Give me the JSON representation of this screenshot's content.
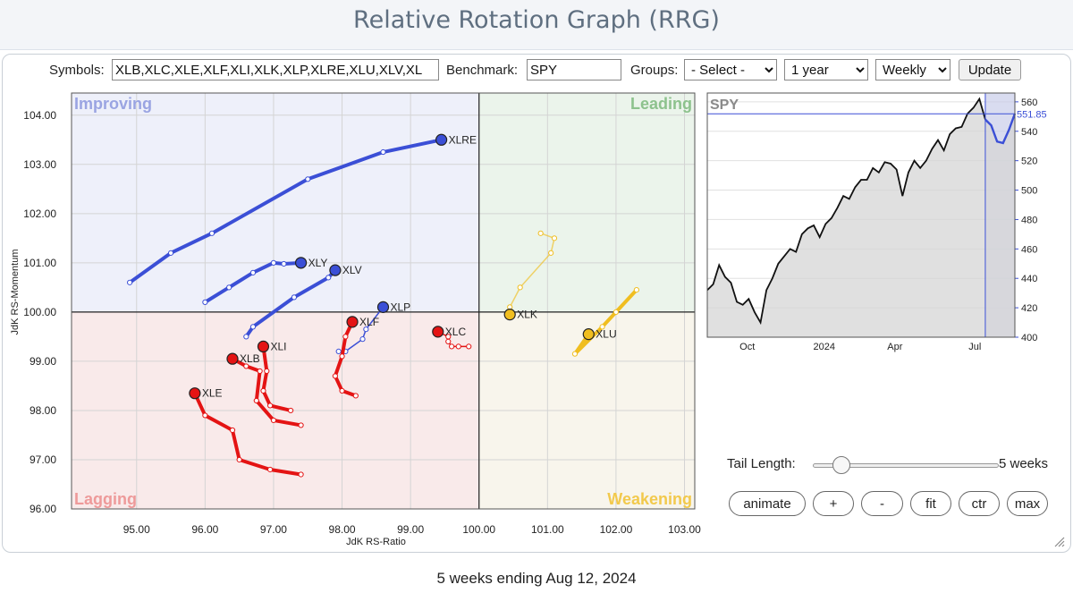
{
  "title": "Relative Rotation Graph (RRG)",
  "controls": {
    "symbols_label": "Symbols:",
    "symbols_value": "XLB,XLC,XLE,XLF,XLI,XLK,XLP,XLRE,XLU,XLV,XL",
    "benchmark_label": "Benchmark:",
    "benchmark_value": "SPY",
    "groups_label": "Groups:",
    "groups_selected": "- Select -",
    "period_selected": "1 year",
    "frequency_selected": "Weekly",
    "update_label": "Update"
  },
  "quadrants": {
    "improving": "Improving",
    "leading": "Leading",
    "lagging": "Lagging",
    "weakening": "Weakening"
  },
  "colors": {
    "improving_bg": "#eef0fa",
    "leading_bg": "#ebf4eb",
    "lagging_bg": "#f9eaea",
    "weakening_bg": "#f8f5ec",
    "improving_text": "#9aa4e2",
    "leading_text": "#8dc28d",
    "lagging_text": "#ee9a9a",
    "weakening_text": "#f2c94c",
    "blue": "#3b4fd6",
    "red": "#e41414",
    "yellow": "#f0be20"
  },
  "chart_data": [
    {
      "type": "scatter",
      "title": "",
      "xlabel": "JdK RS-Ratio",
      "ylabel": "JdK RS-Momentum",
      "xlim": [
        94.05,
        103.15
      ],
      "ylim": [
        96.0,
        104.45
      ],
      "x_ticks": [
        "95.00",
        "96.00",
        "97.00",
        "98.00",
        "99.00",
        "100.00",
        "101.00",
        "102.00",
        "103.00"
      ],
      "y_ticks": [
        "96.00",
        "97.00",
        "98.00",
        "99.00",
        "100.00",
        "101.00",
        "102.00",
        "103.00",
        "104.00"
      ],
      "center": [
        100.0,
        100.0
      ],
      "series": [
        {
          "name": "XLRE",
          "quadrant": "improving",
          "points": [
            [
              94.9,
              100.6
            ],
            [
              95.5,
              101.2
            ],
            [
              96.1,
              101.6
            ],
            [
              97.5,
              102.7
            ],
            [
              98.6,
              103.25
            ],
            [
              99.45,
              103.5
            ]
          ]
        },
        {
          "name": "XLY",
          "quadrant": "improving",
          "points": [
            [
              96.0,
              100.2
            ],
            [
              96.35,
              100.5
            ],
            [
              96.7,
              100.8
            ],
            [
              97.0,
              101.0
            ],
            [
              97.15,
              100.98
            ],
            [
              97.4,
              101.0
            ]
          ]
        },
        {
          "name": "XLV",
          "quadrant": "improving",
          "points": [
            [
              96.6,
              99.5
            ],
            [
              96.7,
              99.7
            ],
            [
              97.3,
              100.3
            ],
            [
              97.8,
              100.7
            ],
            [
              97.9,
              100.85
            ]
          ]
        },
        {
          "name": "XLP",
          "quadrant": "improving",
          "points": [
            [
              97.95,
              99.2
            ],
            [
              98.05,
              99.2
            ],
            [
              98.3,
              99.45
            ],
            [
              98.35,
              99.65
            ],
            [
              98.6,
              100.1
            ]
          ]
        },
        {
          "name": "XLF",
          "quadrant": "lagging",
          "points": [
            [
              98.2,
              98.3
            ],
            [
              98.0,
              98.4
            ],
            [
              97.9,
              98.7
            ],
            [
              98.0,
              99.1
            ],
            [
              98.05,
              99.5
            ],
            [
              98.15,
              99.8
            ]
          ]
        },
        {
          "name": "XLC",
          "quadrant": "lagging",
          "points": [
            [
              99.85,
              99.3
            ],
            [
              99.7,
              99.3
            ],
            [
              99.6,
              99.3
            ],
            [
              99.55,
              99.4
            ],
            [
              99.55,
              99.5
            ],
            [
              99.4,
              99.6
            ]
          ]
        },
        {
          "name": "XLI",
          "quadrant": "lagging",
          "points": [
            [
              97.25,
              98.0
            ],
            [
              96.95,
              98.1
            ],
            [
              96.85,
              98.4
            ],
            [
              96.9,
              98.8
            ],
            [
              96.85,
              99.3
            ]
          ]
        },
        {
          "name": "XLB",
          "quadrant": "lagging",
          "points": [
            [
              97.4,
              97.7
            ],
            [
              97.0,
              97.8
            ],
            [
              96.75,
              98.2
            ],
            [
              96.8,
              98.8
            ],
            [
              96.6,
              98.9
            ],
            [
              96.4,
              99.05
            ]
          ]
        },
        {
          "name": "XLE",
          "quadrant": "lagging",
          "points": [
            [
              97.4,
              96.7
            ],
            [
              96.95,
              96.8
            ],
            [
              96.5,
              97.0
            ],
            [
              96.4,
              97.6
            ],
            [
              96.0,
              97.9
            ],
            [
              95.85,
              98.35
            ]
          ]
        },
        {
          "name": "XLK",
          "quadrant": "weakening",
          "points": [
            [
              100.9,
              101.6
            ],
            [
              101.1,
              101.5
            ],
            [
              101.05,
              101.2
            ],
            [
              100.6,
              100.5
            ],
            [
              100.45,
              100.1
            ],
            [
              100.45,
              99.95
            ]
          ]
        },
        {
          "name": "XLU",
          "quadrant": "weakening",
          "points": [
            [
              102.3,
              100.45
            ],
            [
              102.0,
              100.0
            ],
            [
              101.8,
              99.7
            ],
            [
              101.4,
              99.15
            ],
            [
              101.6,
              99.55
            ]
          ]
        }
      ]
    },
    {
      "type": "area",
      "title": "SPY",
      "x_ticks": [
        "Oct",
        "2024",
        "Apr",
        "Jul"
      ],
      "y_ticks": [
        "400",
        "420",
        "440",
        "460",
        "480",
        "500",
        "520",
        "540",
        "560"
      ],
      "ylim": [
        400,
        566
      ],
      "last_value": "551.85",
      "x": [
        0,
        1,
        2,
        3,
        4,
        5,
        6,
        7,
        8,
        9,
        10,
        11,
        12,
        13,
        14,
        15,
        16,
        17,
        18,
        19,
        20,
        21,
        22,
        23,
        24,
        25,
        26,
        27,
        28,
        29,
        30,
        31,
        32,
        33,
        34,
        35,
        36,
        37,
        38,
        39,
        40,
        41,
        42,
        43,
        44,
        45,
        46,
        47,
        48,
        49,
        50,
        51,
        52
      ],
      "values": [
        432,
        436,
        449,
        441,
        437,
        424,
        422,
        426,
        417,
        410,
        432,
        440,
        450,
        455,
        460,
        458,
        470,
        474,
        476,
        468,
        477,
        481,
        488,
        496,
        494,
        502,
        507,
        507,
        515,
        512,
        519,
        518,
        514,
        496,
        512,
        520,
        515,
        520,
        528,
        534,
        527,
        538,
        542,
        543,
        552,
        556,
        562,
        548,
        544,
        533,
        532,
        541,
        552
      ]
    }
  ],
  "tail": {
    "label": "Tail Length:",
    "value_text": "5 weeks",
    "value": 5
  },
  "buttons": {
    "animate": "animate",
    "plus": "+",
    "minus": "-",
    "fit": "fit",
    "ctr": "ctr",
    "max": "max"
  },
  "footer": "5 weeks ending Aug 12, 2024"
}
